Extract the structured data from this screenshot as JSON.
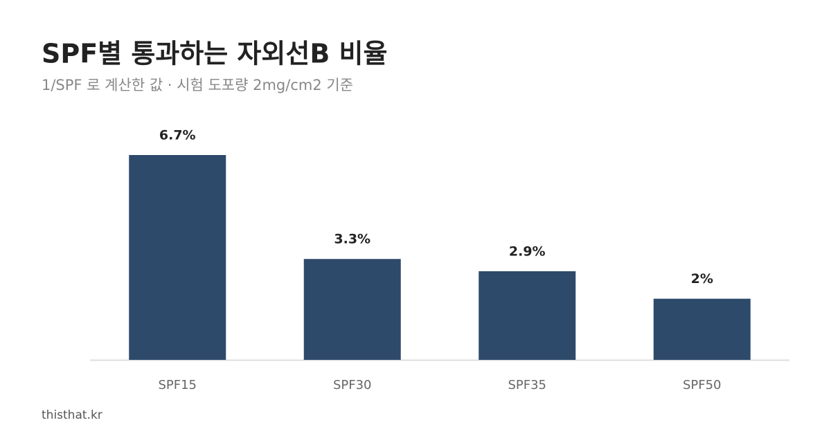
{
  "chart_data": {
    "type": "bar",
    "title": "SPF별 통과하는 자외선B 비율",
    "subtitle": "1/SPF 로 계산한 값 · 시험 도포량 2mg/cm2 기준",
    "categories": [
      "SPF15",
      "SPF30",
      "SPF35",
      "SPF50"
    ],
    "values": [
      6.7,
      3.3,
      2.9,
      2
    ],
    "value_labels": [
      "6.7%",
      "3.3%",
      "2.9%",
      "2%"
    ],
    "color": "#2d4a6b",
    "source": "thisthat.kr"
  }
}
